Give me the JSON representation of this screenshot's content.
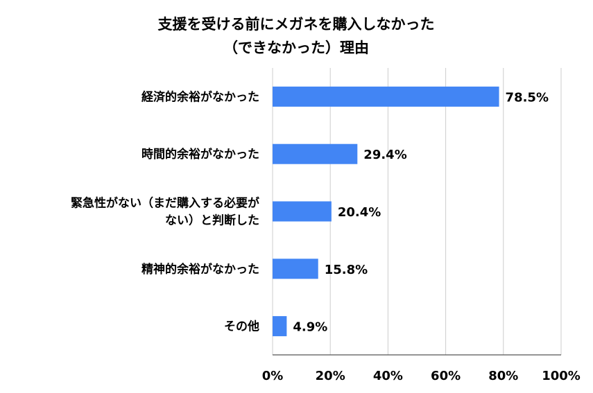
{
  "chart_data": {
    "type": "bar",
    "orientation": "horizontal",
    "title": [
      "支援を受ける前にメガネを購入しなかった",
      "（できなかった）理由"
    ],
    "categories": [
      [
        "経済的余裕がなかった"
      ],
      [
        "時間的余裕がなかった"
      ],
      [
        "緊急性がない（まだ購入する必要が",
        "ない）と判断した"
      ],
      [
        "精神的余裕がなかった"
      ],
      [
        "その他"
      ]
    ],
    "values": [
      78.5,
      29.4,
      20.4,
      15.8,
      4.9
    ],
    "value_labels": [
      "78.5%",
      "29.4%",
      "20.4%",
      "15.8%",
      "4.9%"
    ],
    "xlim": [
      0,
      100
    ],
    "xticks": [
      "0%",
      "20%",
      "40%",
      "60%",
      "80%",
      "100%"
    ],
    "grid": true,
    "bar_color": "#4285f4",
    "grid_color": "#cccccc"
  }
}
